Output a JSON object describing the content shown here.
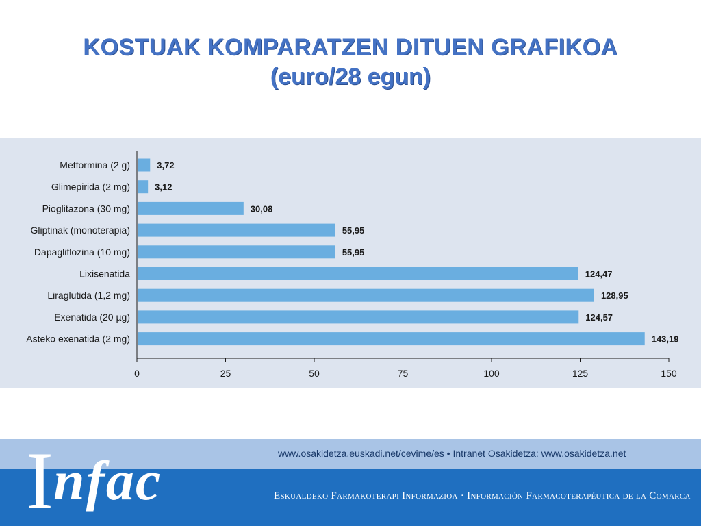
{
  "title": {
    "line1": "KOSTUAK KOMPARATZEN DITUEN GRAFIKOA",
    "line2": "(euro/28 egun)"
  },
  "chart_data": {
    "type": "bar",
    "orientation": "horizontal",
    "categories": [
      "Metformina (2 g)",
      "Glimepirida (2 mg)",
      "Pioglitazona (30 mg)",
      "Gliptinak (monoterapia)",
      "Dapagliflozina (10 mg)",
      "Lixisenatida",
      "Liraglutida (1,2 mg)",
      "Exenatida (20 µg)",
      "Asteko exenatida (2 mg)"
    ],
    "values": [
      3.72,
      3.12,
      30.08,
      55.95,
      55.95,
      124.47,
      128.95,
      124.57,
      143.19
    ],
    "value_labels": [
      "3,72",
      "3,12",
      "30,08",
      "55,95",
      "55,95",
      "124,47",
      "128,95",
      "124,57",
      "143,19"
    ],
    "xlim": [
      0,
      150
    ],
    "xticks": [
      "0",
      "25",
      "50",
      "75",
      "100",
      "125",
      "150"
    ],
    "grid": false,
    "bar_color": "#6aaee0",
    "panel_color": "#dde4ef"
  },
  "footer": {
    "logo": "Infac",
    "links": "www.osakidetza.euskadi.net/cevime/es  •  Intranet Osakidetza: www.osakidetza.net",
    "tagline": "Eskualdeko Farmakoterapi Informazioa · Información Farmacoterapéutica de la Comarca"
  },
  "colors": {
    "title": "#4472c4",
    "footer_light": "#a9c4e6",
    "footer_dark": "#1f6fc0"
  }
}
